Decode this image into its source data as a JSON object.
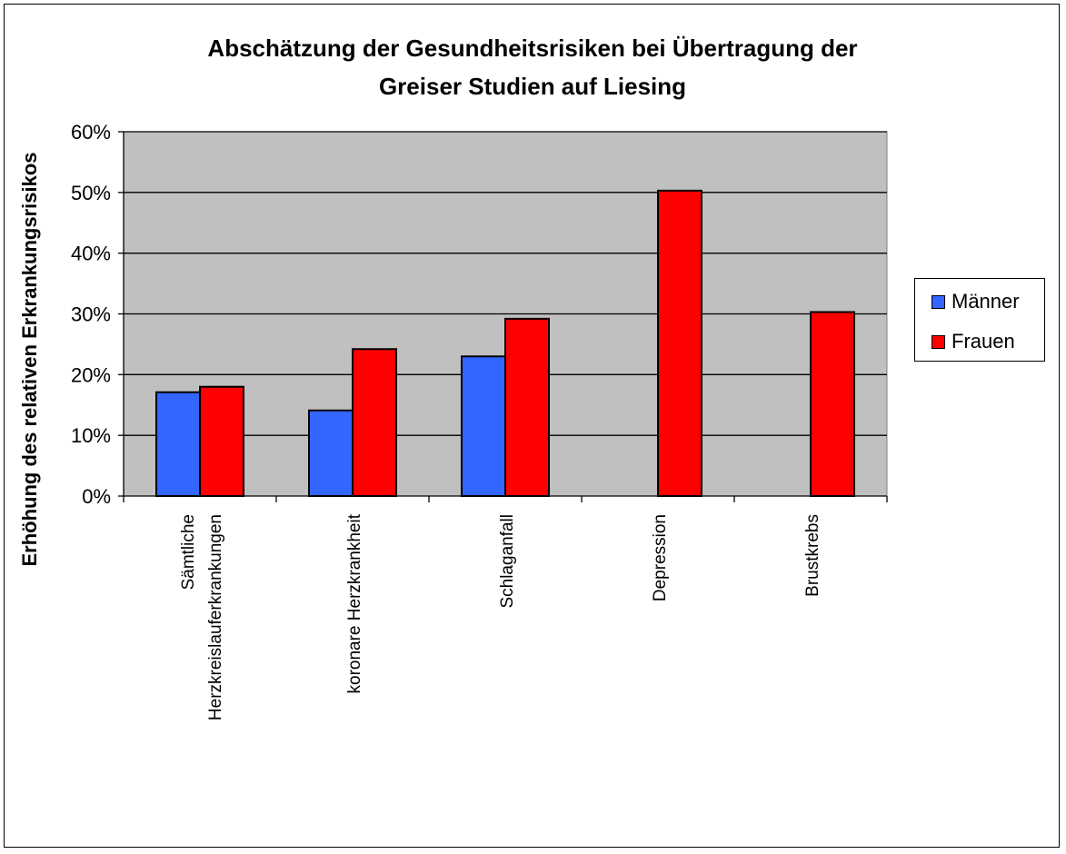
{
  "chart_data": {
    "type": "bar",
    "title": "Abschätzung der Gesundheitsrisiken bei Übertragung der Greiser Studien auf Liesing",
    "title_lines": [
      "Abschätzung der Gesundheitsrisiken bei Übertragung der",
      "Greiser Studien auf Liesing"
    ],
    "xlabel": "",
    "ylabel": "Erhöhung des relativen Erkrankungsrisikos",
    "ylim": [
      0,
      60
    ],
    "yticks": [
      0,
      10,
      20,
      30,
      40,
      50,
      60
    ],
    "ytick_labels": [
      "0%",
      "10%",
      "20%",
      "30%",
      "40%",
      "50%",
      "60%"
    ],
    "categories": [
      [
        "Sämtliche",
        "Herzkreislauferkrankungen"
      ],
      [
        "koronare Herzkrankheit"
      ],
      [
        "Schlaganfall"
      ],
      [
        "Depression"
      ],
      [
        "Brustkrebs"
      ]
    ],
    "series": [
      {
        "name": "Männer",
        "color": "#3366FF",
        "values": [
          17.1,
          14.1,
          23.0,
          null,
          null
        ]
      },
      {
        "name": "Frauen",
        "color": "#FF0000",
        "values": [
          18.0,
          24.2,
          29.2,
          50.3,
          30.3
        ]
      }
    ],
    "grid": true,
    "plot_background": "#C0C0C0",
    "legend_position": "right"
  }
}
